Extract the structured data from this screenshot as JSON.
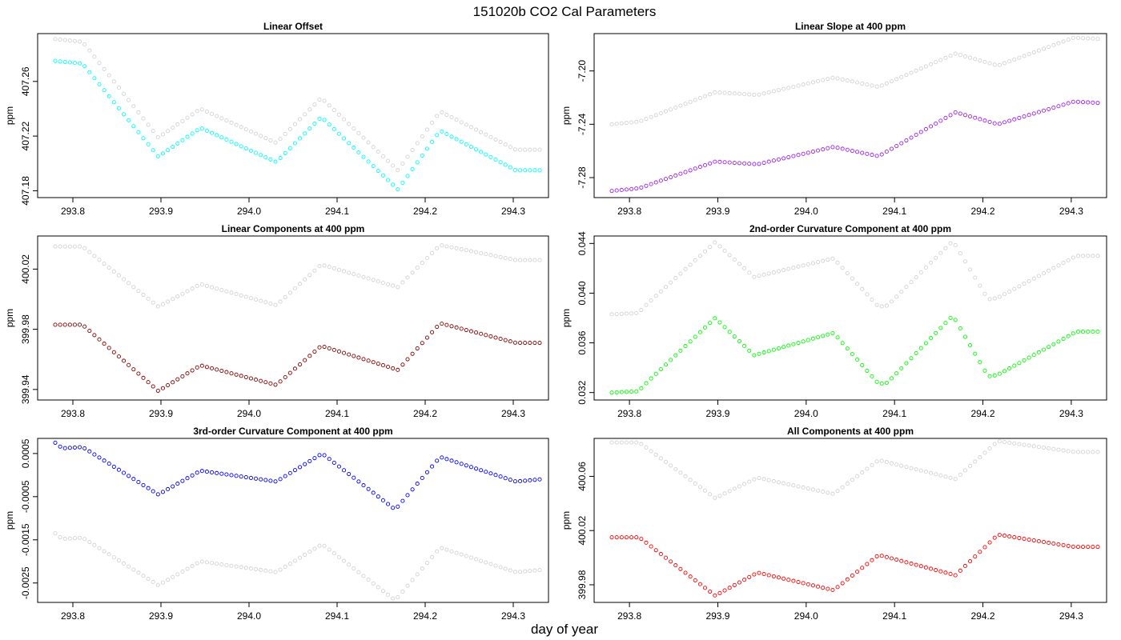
{
  "figure": {
    "title": "151020b   CO2 Cal Parameters",
    "xlabel": "day of year"
  },
  "chart_data": [
    {
      "type": "scatter",
      "title": "Linear Offset",
      "xlabel": "",
      "ylabel": "ppm",
      "xlim": [
        293.76,
        294.34
      ],
      "ylim": [
        407.175,
        407.295
      ],
      "xticks": [
        "293.8",
        "293.9",
        "294.0",
        "294.1",
        "294.2",
        "294.3"
      ],
      "yticks": [
        "407.18",
        "407.22",
        "407.26"
      ],
      "grid": false,
      "series": [
        {
          "color": "#d3d3d3",
          "x_start": 293.78,
          "x_end": 294.33,
          "knots_x": [
            293.78,
            293.811,
            293.897,
            293.945,
            294.031,
            294.082,
            294.169,
            294.217,
            294.303,
            294.33
          ],
          "knots_y": [
            407.291,
            407.289,
            407.219,
            407.24,
            407.215,
            407.248,
            407.195,
            407.238,
            407.21,
            407.21
          ]
        },
        {
          "color": "#00ffff",
          "x_start": 293.78,
          "x_end": 294.33,
          "knots_x": [
            293.78,
            293.811,
            293.897,
            293.945,
            294.031,
            294.082,
            294.169,
            294.217,
            294.303,
            294.33
          ],
          "knots_y": [
            407.275,
            407.273,
            407.205,
            407.226,
            407.201,
            407.234,
            407.181,
            407.224,
            407.195,
            407.195
          ]
        }
      ]
    },
    {
      "type": "scatter",
      "title": "Linear Slope at 400 ppm",
      "xlabel": "",
      "ylabel": "ppm",
      "xlim": [
        293.76,
        294.34
      ],
      "ylim": [
        -7.295,
        -7.172
      ],
      "xticks": [
        "293.8",
        "293.9",
        "294.0",
        "294.1",
        "294.2",
        "294.3"
      ],
      "yticks": [
        "-7.28",
        "-7.24",
        "-7.20"
      ],
      "grid": false,
      "series": [
        {
          "color": "#d3d3d3",
          "x_start": 293.78,
          "x_end": 294.33,
          "knots_x": [
            293.78,
            293.811,
            293.897,
            293.945,
            294.031,
            294.082,
            294.169,
            294.217,
            294.303,
            294.33
          ],
          "knots_y": [
            -7.24,
            -7.238,
            -7.216,
            -7.218,
            -7.205,
            -7.212,
            -7.187,
            -7.196,
            -7.175,
            -7.176
          ]
        },
        {
          "color": "#a020f0",
          "x_start": 293.78,
          "x_end": 294.33,
          "knots_x": [
            293.78,
            293.811,
            293.897,
            293.945,
            294.031,
            294.082,
            294.169,
            294.217,
            294.303,
            294.33
          ],
          "knots_y": [
            -7.29,
            -7.288,
            -7.268,
            -7.27,
            -7.257,
            -7.264,
            -7.231,
            -7.24,
            -7.223,
            -7.224
          ]
        }
      ]
    },
    {
      "type": "scatter",
      "title": "Linear Components at 400 ppm",
      "xlabel": "",
      "ylabel": "ppm",
      "xlim": [
        293.76,
        294.34
      ],
      "ylim": [
        399.933,
        400.042
      ],
      "xticks": [
        "293.8",
        "293.9",
        "294.0",
        "294.1",
        "294.2",
        "294.3"
      ],
      "yticks": [
        "399.94",
        "399.98",
        "400.02"
      ],
      "grid": false,
      "series": [
        {
          "color": "#d3d3d3",
          "x_start": 293.78,
          "x_end": 294.33,
          "knots_x": [
            293.78,
            293.811,
            293.897,
            293.945,
            294.031,
            294.082,
            294.169,
            294.217,
            294.303,
            294.33
          ],
          "knots_y": [
            400.035,
            400.035,
            399.995,
            400.01,
            399.996,
            400.023,
            400.008,
            400.036,
            400.026,
            400.026
          ]
        },
        {
          "color": "#8b0000",
          "x_start": 293.78,
          "x_end": 294.33,
          "knots_x": [
            293.78,
            293.811,
            293.897,
            293.945,
            294.031,
            294.082,
            294.169,
            294.217,
            294.303,
            294.33
          ],
          "knots_y": [
            399.983,
            399.983,
            399.939,
            399.956,
            399.943,
            399.969,
            399.953,
            399.984,
            399.971,
            399.971
          ]
        }
      ]
    },
    {
      "type": "scatter",
      "title": "2nd-order Curvature Component at 400 ppm",
      "xlabel": "",
      "ylabel": "ppm",
      "xlim": [
        293.76,
        294.34
      ],
      "ylim": [
        0.0314,
        0.0446
      ],
      "xticks": [
        "293.8",
        "293.9",
        "294.0",
        "294.1",
        "294.2",
        "294.3"
      ],
      "yticks": [
        "0.032",
        "0.036",
        "0.040",
        "0.044"
      ],
      "grid": false,
      "series": [
        {
          "color": "#d3d3d3",
          "x_start": 293.78,
          "x_end": 294.33,
          "knots_x": [
            293.78,
            293.81,
            293.821,
            293.897,
            293.941,
            294.031,
            294.082,
            294.092,
            294.166,
            294.206,
            294.216,
            294.306,
            294.33
          ],
          "knots_y": [
            0.0383,
            0.0384,
            0.0392,
            0.0441,
            0.0413,
            0.0428,
            0.0389,
            0.039,
            0.0442,
            0.0395,
            0.0396,
            0.043,
            0.043
          ]
        },
        {
          "color": "#00ff00",
          "x_start": 293.78,
          "x_end": 294.33,
          "knots_x": [
            293.78,
            293.81,
            293.821,
            293.897,
            293.941,
            294.031,
            294.082,
            294.092,
            294.166,
            294.206,
            294.216,
            294.306,
            294.33
          ],
          "knots_y": [
            0.032,
            0.0321,
            0.0329,
            0.038,
            0.035,
            0.0368,
            0.0327,
            0.0328,
            0.0382,
            0.0333,
            0.0334,
            0.0369,
            0.0369
          ]
        }
      ]
    },
    {
      "type": "scatter",
      "title": "3rd-order Curvature Component at 400 ppm",
      "xlabel": "",
      "ylabel": "ppm",
      "xlim": [
        293.76,
        294.34
      ],
      "ylim": [
        -0.00295,
        0.00085
      ],
      "xticks": [
        "293.8",
        "293.9",
        "294.0",
        "294.1",
        "294.2",
        "294.3"
      ],
      "yticks": [
        "-0.0025",
        "-0.0015",
        "-0.0005",
        "0.0005"
      ],
      "grid": false,
      "series": [
        {
          "color": "#d3d3d3",
          "x_start": 293.78,
          "x_end": 294.33,
          "knots_x": [
            293.78,
            293.788,
            293.811,
            293.897,
            293.945,
            294.031,
            294.083,
            294.166,
            294.217,
            294.303,
            294.33
          ],
          "knots_y": [
            -0.00135,
            -0.00148,
            -0.00145,
            -0.00255,
            -0.002,
            -0.00225,
            -0.0016,
            -0.0029,
            -0.00168,
            -0.00225,
            -0.0022
          ]
        },
        {
          "color": "#0000ff",
          "x_start": 293.78,
          "x_end": 294.33,
          "knots_x": [
            293.78,
            293.788,
            293.811,
            293.897,
            293.945,
            294.031,
            294.083,
            294.166,
            294.217,
            294.303,
            294.33
          ],
          "knots_y": [
            0.00075,
            0.00062,
            0.00065,
            -0.00045,
            0.0001,
            -0.00015,
            0.0005,
            -0.0008,
            0.00042,
            -0.00015,
            -0.0001
          ]
        }
      ]
    },
    {
      "type": "scatter",
      "title": "All Components at 400 ppm",
      "xlabel": "",
      "ylabel": "ppm",
      "xlim": [
        293.76,
        294.34
      ],
      "ylim": [
        399.967,
        400.088
      ],
      "xticks": [
        "293.8",
        "293.9",
        "294.0",
        "294.1",
        "294.2",
        "294.3"
      ],
      "yticks": [
        "399.98",
        "400.02",
        "400.06"
      ],
      "grid": false,
      "series": [
        {
          "color": "#d3d3d3",
          "x_start": 293.78,
          "x_end": 294.33,
          "knots_x": [
            293.78,
            293.811,
            293.897,
            293.945,
            294.031,
            294.082,
            294.169,
            294.217,
            294.303,
            294.33
          ],
          "knots_y": [
            400.085,
            400.085,
            400.044,
            400.059,
            400.047,
            400.072,
            400.058,
            400.086,
            400.078,
            400.078
          ]
        },
        {
          "color": "#ff0000",
          "x_start": 293.78,
          "x_end": 294.33,
          "knots_x": [
            293.78,
            293.811,
            293.897,
            293.945,
            294.031,
            294.082,
            294.169,
            294.217,
            294.303,
            294.33
          ],
          "knots_y": [
            400.015,
            400.015,
            399.972,
            399.989,
            399.976,
            400.002,
            399.987,
            400.017,
            400.008,
            400.008
          ]
        }
      ]
    }
  ]
}
